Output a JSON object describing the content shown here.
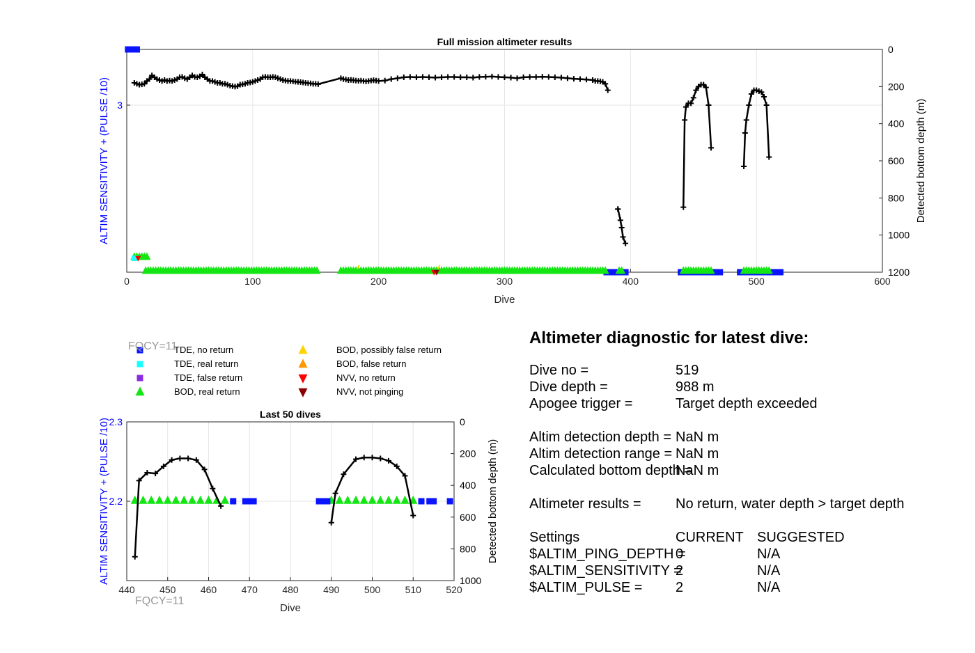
{
  "colors": {
    "blue": "#0a14ff",
    "cyan": "#19ffff",
    "purple": "#8a2be2",
    "green": "#14e614",
    "yellow": "#ffd200",
    "orange": "#ff9900",
    "red": "#ff0000",
    "darkred": "#8b0000",
    "depth": "#000000",
    "left_axis": "#0000ff"
  },
  "legend": [
    {
      "label": "TDE, no return",
      "marker": "square",
      "color": "#0a14ff"
    },
    {
      "label": "TDE, real return",
      "marker": "square",
      "color": "#19ffff"
    },
    {
      "label": "TDE, false return",
      "marker": "square",
      "color": "#8a2be2"
    },
    {
      "label": "BOD, real return",
      "marker": "triangle-up",
      "color": "#14e614"
    },
    {
      "label": "BOD, possibly false return",
      "marker": "triangle-up",
      "color": "#ffd200"
    },
    {
      "label": "BOD, false return",
      "marker": "triangle-up",
      "color": "#ff9900"
    },
    {
      "label": "NVV, no return",
      "marker": "triangle-down",
      "color": "#ff0000"
    },
    {
      "label": "NVV, not pinging",
      "marker": "triangle-down",
      "color": "#8b0000"
    }
  ],
  "fqcy_labels": [
    "FQCY=11",
    "FQCY=11"
  ],
  "chart_data": [
    {
      "type": "scatter",
      "title": "Full mission altimeter results",
      "xlabel": "Dive",
      "ylabel_left": "ALTIM SENSITIVITY + (PULSE /10)",
      "ylabel_right": "Detected bottom depth (m)",
      "xlim": [
        0,
        600
      ],
      "xticks": [
        0,
        100,
        200,
        300,
        400,
        500,
        600
      ],
      "ylim_left": [
        1.8,
        3.4
      ],
      "yticks_left": [
        3
      ],
      "ylim_right": [
        1200,
        0
      ],
      "yticks_right": [
        0,
        200,
        400,
        600,
        800,
        1000,
        1200
      ],
      "grid": true,
      "tde_no_return": {
        "x": [
          1,
          2,
          3,
          4,
          5,
          6,
          7,
          8,
          381,
          382,
          383,
          384,
          385,
          386,
          387,
          388,
          389,
          390,
          393,
          394,
          395,
          396,
          440,
          441,
          442,
          443,
          444,
          445,
          446,
          447,
          448,
          449,
          450,
          451,
          452,
          453,
          454,
          455,
          456,
          457,
          458,
          459,
          460,
          461,
          462,
          463,
          464,
          465,
          466,
          467,
          468,
          469,
          470,
          471,
          487,
          488,
          489,
          490,
          491,
          492,
          493,
          494,
          495,
          496,
          497,
          498,
          499,
          500,
          501,
          502,
          503,
          504,
          505,
          506,
          507,
          508,
          509,
          510,
          511,
          512,
          513,
          514,
          515,
          516,
          517,
          518,
          519
        ],
        "y": [
          3.4,
          3.4,
          3.4,
          3.4,
          3.4,
          3.4,
          3.4,
          3.4,
          1.8,
          1.8,
          1.8,
          1.8,
          1.8,
          1.8,
          1.8,
          1.8,
          1.8,
          1.8,
          1.8,
          1.8,
          1.8,
          1.8,
          1.8,
          1.8,
          1.8,
          1.8,
          1.8,
          1.8,
          1.8,
          1.8,
          1.8,
          1.8,
          1.8,
          1.8,
          1.8,
          1.8,
          1.8,
          1.8,
          1.8,
          1.8,
          1.8,
          1.8,
          1.8,
          1.8,
          1.8,
          1.8,
          1.8,
          1.8,
          1.8,
          1.8,
          1.8,
          1.8,
          1.8,
          1.8,
          1.8,
          1.8,
          1.8,
          1.8,
          1.8,
          1.8,
          1.8,
          1.8,
          1.8,
          1.8,
          1.8,
          1.8,
          1.8,
          1.8,
          1.8,
          1.8,
          1.8,
          1.8,
          1.8,
          1.8,
          1.8,
          1.8,
          1.8,
          1.8,
          1.8,
          1.8,
          1.8,
          1.8,
          1.8,
          1.8,
          1.8,
          1.8,
          1.8
        ]
      },
      "bod_real_segments": [
        {
          "from": 6,
          "to": 17,
          "y": 1.9
        },
        {
          "from": 15,
          "to": 152,
          "y": 1.8
        },
        {
          "from": 170,
          "to": 380,
          "y": 1.8
        },
        {
          "from": 391,
          "to": 393,
          "y": 1.8
        },
        {
          "from": 442,
          "to": 464,
          "y": 1.8
        },
        {
          "from": 490,
          "to": 510,
          "y": 1.8
        }
      ],
      "nvv_markers": [
        {
          "x": 9,
          "y": 1.9,
          "kind": "no return"
        },
        {
          "x": 244,
          "y": 1.8,
          "kind": "no return"
        },
        {
          "x": 246,
          "y": 1.8,
          "kind": "not pinging"
        }
      ],
      "bottom_depth_segments": [
        {
          "x": [
            6,
            8,
            10,
            12,
            14,
            16,
            18,
            20,
            22,
            24,
            26,
            28,
            30,
            32,
            34,
            36,
            38,
            40,
            42,
            44,
            46,
            48,
            50,
            52,
            54,
            56,
            58,
            60,
            62,
            64,
            66,
            68,
            70,
            72,
            74,
            76,
            78,
            80,
            82,
            84,
            86,
            88,
            90,
            92,
            94,
            96,
            98,
            100,
            102,
            104,
            106,
            108,
            110,
            112,
            114,
            116,
            118,
            120,
            122,
            124,
            126,
            128,
            130,
            132,
            134,
            136,
            138,
            140,
            142,
            144,
            146,
            148,
            150,
            152,
            170,
            172,
            174,
            176,
            178,
            180,
            182,
            184,
            186,
            188,
            190,
            192,
            194,
            196,
            198,
            200,
            205,
            210,
            215,
            220,
            225,
            230,
            235,
            240,
            245,
            250,
            255,
            260,
            265,
            270,
            275,
            280,
            285,
            290,
            295,
            300,
            305,
            310,
            315,
            320,
            325,
            330,
            335,
            340,
            345,
            350,
            355,
            360,
            365,
            370,
            372,
            374,
            376,
            378,
            380,
            382
          ],
          "y": [
            180,
            185,
            190,
            188,
            185,
            170,
            160,
            140,
            150,
            160,
            165,
            170,
            165,
            170,
            168,
            170,
            165,
            160,
            150,
            148,
            155,
            160,
            150,
            140,
            148,
            150,
            145,
            135,
            150,
            160,
            170,
            170,
            175,
            180,
            180,
            185,
            185,
            190,
            195,
            198,
            200,
            198,
            190,
            188,
            185,
            180,
            178,
            175,
            170,
            165,
            160,
            150,
            148,
            150,
            150,
            148,
            150,
            155,
            160,
            165,
            168,
            170,
            170,
            172,
            174,
            175,
            176,
            178,
            180,
            182,
            183,
            185,
            185,
            187,
            155,
            160,
            162,
            165,
            164,
            166,
            168,
            169,
            168,
            170,
            172,
            170,
            168,
            166,
            168,
            170,
            168,
            160,
            155,
            150,
            148,
            150,
            148,
            150,
            152,
            150,
            148,
            148,
            150,
            150,
            152,
            148,
            147,
            146,
            148,
            150,
            152,
            155,
            150,
            148,
            148,
            147,
            148,
            150,
            152,
            155,
            158,
            160,
            162,
            165,
            170,
            170,
            172,
            175,
            185,
            220
          ]
        },
        {
          "x": 390,
          "y": [
            860
          ]
        },
        {
          "x": [
            390,
            392,
            393,
            394,
            396
          ],
          "y": [
            860,
            920,
            960,
            1010,
            1045
          ]
        },
        {
          "x": [
            442,
            443,
            444,
            446,
            448,
            450,
            452,
            454,
            456,
            458,
            460,
            462,
            464
          ],
          "y": [
            850,
            380,
            310,
            290,
            290,
            260,
            220,
            200,
            190,
            190,
            205,
            300,
            530
          ]
        },
        {
          "x": [
            490,
            491,
            492,
            494,
            496,
            498,
            500,
            502,
            504,
            506,
            508,
            510
          ],
          "y": [
            630,
            450,
            380,
            300,
            240,
            220,
            220,
            225,
            230,
            255,
            300,
            580
          ]
        }
      ]
    },
    {
      "type": "scatter",
      "title": "Last 50 dives",
      "xlabel": "Dive",
      "ylabel_left": "ALTIM SENSITIVITY + (PULSE /10)",
      "ylabel_right": "Detected bottom depth (m)",
      "xlim": [
        440,
        520
      ],
      "xticks": [
        440,
        450,
        460,
        470,
        480,
        490,
        500,
        510,
        520
      ],
      "ylim_left": [
        2.1,
        2.3
      ],
      "yticks_left": [
        2.2,
        2.3
      ],
      "ylim_right": [
        1000,
        0
      ],
      "yticks_right": [
        0,
        200,
        400,
        600,
        800,
        1000
      ],
      "grid": true,
      "bod_real_return": {
        "x": [
          442,
          444,
          446,
          448,
          450,
          452,
          454,
          456,
          458,
          460,
          462,
          464,
          490,
          492,
          494,
          496,
          498,
          500,
          502,
          504,
          506,
          508,
          510
        ],
        "y": 2.2
      },
      "tde_no_return": {
        "x": [
          466,
          469,
          470,
          471,
          487,
          488,
          489,
          512,
          514,
          515,
          519
        ],
        "y": 2.2
      },
      "bottom_depth": [
        {
          "x": [
            442,
            443,
            445,
            447,
            449,
            451,
            453,
            455,
            457,
            459,
            461,
            463
          ],
          "y": [
            850,
            370,
            320,
            325,
            280,
            240,
            230,
            230,
            240,
            300,
            420,
            530
          ]
        },
        {
          "x": [
            490,
            491,
            493,
            496,
            498,
            500,
            502,
            504,
            506,
            508,
            510
          ],
          "y": [
            635,
            450,
            330,
            235,
            225,
            225,
            230,
            245,
            280,
            340,
            590
          ]
        }
      ]
    }
  ],
  "diagnostic": {
    "title": "Altimeter diagnostic for latest dive:",
    "rows": [
      {
        "label": "Dive no =",
        "value": "519"
      },
      {
        "label": "Dive depth =",
        "value": "988 m"
      },
      {
        "label": "Apogee trigger =",
        "value": "Target depth exceeded"
      },
      {
        "label": "Altim detection depth =",
        "value": "NaN m"
      },
      {
        "label": "Altim detection range =",
        "value": "NaN m"
      },
      {
        "label": "Calculated bottom depth =",
        "value": "NaN m"
      },
      {
        "label": "Altimeter results =",
        "value": "No return, water depth > target depth"
      },
      {
        "label": "Settings",
        "value": "CURRENT",
        "extra": "SUGGESTED"
      },
      {
        "label": "$ALTIM_PING_DEPTH =",
        "value": "0",
        "extra": "N/A"
      },
      {
        "label": "$ALTIM_SENSITIVITY =",
        "value": "2",
        "extra": "N/A"
      },
      {
        "label": "$ALTIM_PULSE =",
        "value": "2",
        "extra": "N/A"
      }
    ]
  }
}
